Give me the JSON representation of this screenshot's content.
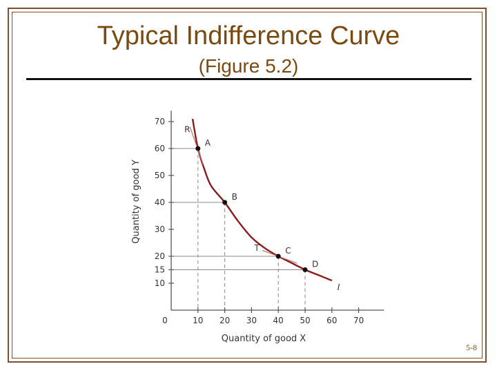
{
  "slide": {
    "title": "Typical Indifference Curve",
    "subtitle": "(Figure 5.2)",
    "page_number": "5-8",
    "frame_color": "#7a5030",
    "title_color": "#7a4a10"
  },
  "chart_data": {
    "type": "line",
    "xlabel": "Quantity of good X",
    "ylabel": "Quantity of good Y",
    "xlim": [
      0,
      80
    ],
    "ylim": [
      0,
      72
    ],
    "x_ticks": [
      0,
      10,
      20,
      30,
      40,
      50,
      60,
      70
    ],
    "y_ticks": [
      10,
      15,
      20,
      30,
      40,
      50,
      60,
      70
    ],
    "curve": {
      "name": "I",
      "color": "#8b1a1a",
      "x": [
        8,
        10,
        12.5,
        15,
        20,
        25,
        30,
        35,
        40,
        45,
        50,
        55,
        60
      ],
      "y": [
        71,
        60,
        52,
        46,
        40,
        33,
        27,
        23,
        20,
        17.5,
        15,
        13,
        11
      ]
    },
    "points": [
      {
        "label": "A",
        "x": 10,
        "y": 60
      },
      {
        "label": "B",
        "x": 20,
        "y": 40
      },
      {
        "label": "C",
        "x": 40,
        "y": 20
      },
      {
        "label": "D",
        "x": 50,
        "y": 15
      }
    ],
    "tangent_labels": [
      {
        "label": "R",
        "x": 6,
        "y": 66
      },
      {
        "label": "T",
        "x": 32,
        "y": 22
      }
    ],
    "grid": false
  }
}
